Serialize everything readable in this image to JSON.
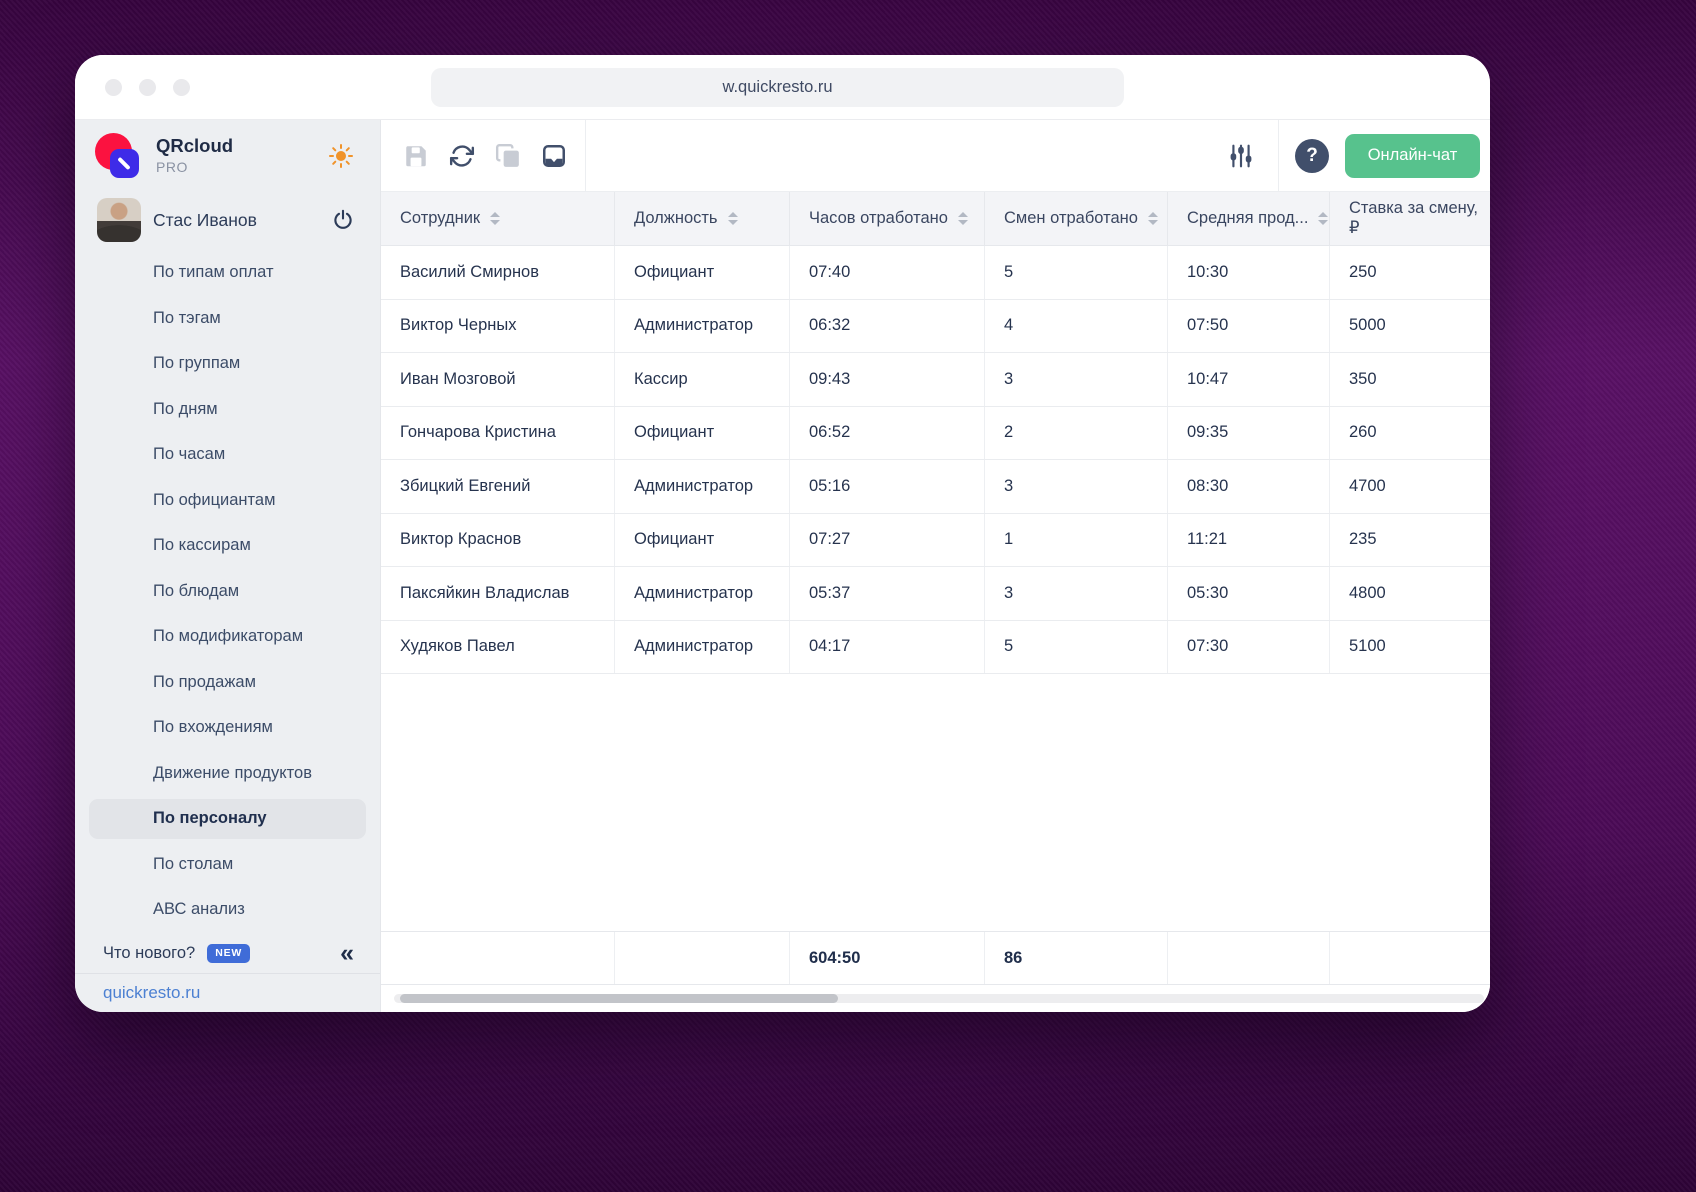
{
  "browser": {
    "url": "w.quickresto.ru"
  },
  "brand": {
    "name": "QRcloud",
    "plan": "PRO"
  },
  "colors": {
    "accent-green": "#57c28d",
    "badge-blue": "#3f6cd8",
    "link-blue": "#4c80d2",
    "logo-red": "#fb1240",
    "logo-blue": "#3e2be8",
    "sun-orange": "#f0932a",
    "icon-dark": "#414f6b",
    "icon-gray": "#c8ccd4"
  },
  "icons": {
    "help_glyph": "?",
    "collapse_glyph": "«",
    "toolbar_left": [
      "save-icon",
      "refresh-icon",
      "copy-icon",
      "export-tray-icon"
    ],
    "toolbar_right": [
      "sliders-icon",
      "help-icon"
    ],
    "sidebar": [
      "sun-icon",
      "power-icon",
      "collapse-chevrons-icon"
    ]
  },
  "toolbar": {
    "chat_button": "Онлайн-чат"
  },
  "sidebar": {
    "user": {
      "name": "Стас Иванов"
    },
    "items": [
      {
        "label": "По типам оплат",
        "active": false
      },
      {
        "label": "По тэгам",
        "active": false
      },
      {
        "label": "По группам",
        "active": false
      },
      {
        "label": "По дням",
        "active": false
      },
      {
        "label": "По часам",
        "active": false
      },
      {
        "label": "По официантам",
        "active": false
      },
      {
        "label": "По кассирам",
        "active": false
      },
      {
        "label": "По блюдам",
        "active": false
      },
      {
        "label": "По модификаторам",
        "active": false
      },
      {
        "label": "По продажам",
        "active": false
      },
      {
        "label": "По вхождениям",
        "active": false
      },
      {
        "label": "Движение продуктов",
        "active": false
      },
      {
        "label": "По персоналу",
        "active": true
      },
      {
        "label": "По столам",
        "active": false
      },
      {
        "label": "АВС анализ",
        "active": false
      }
    ],
    "footer": {
      "whats_new": "Что нового?",
      "badge": "NEW",
      "link": "quickresto.ru"
    }
  },
  "table": {
    "columns": [
      {
        "label": "Сотрудник",
        "sortable": true
      },
      {
        "label": "Должность",
        "sortable": true
      },
      {
        "label": "Часов отработано",
        "sortable": true
      },
      {
        "label": "Смен отработано",
        "sortable": true
      },
      {
        "label": "Средняя прод...",
        "sortable": true
      },
      {
        "label": "Ставка за смену, ₽",
        "sortable": false
      }
    ],
    "rows": [
      [
        "Василий Смирнов",
        "Официант",
        "07:40",
        "5",
        "10:30",
        "250"
      ],
      [
        "Виктор Черных",
        "Администратор",
        "06:32",
        "4",
        "07:50",
        "5000"
      ],
      [
        "Иван Мозговой",
        "Кассир",
        "09:43",
        "3",
        "10:47",
        "350"
      ],
      [
        "Гончарова Кристина",
        "Официант",
        "06:52",
        "2",
        "09:35",
        "260"
      ],
      [
        "Збицкий Евгений",
        "Администратор",
        "05:16",
        "3",
        "08:30",
        "4700"
      ],
      [
        "Виктор Краснов",
        "Официант",
        "07:27",
        "1",
        "11:21",
        "235"
      ],
      [
        "Паксяйкин Владислав",
        "Администратор",
        "05:37",
        "3",
        "05:30",
        "4800"
      ],
      [
        "Худяков Павел",
        "Администратор",
        "04:17",
        "5",
        "07:30",
        "5100"
      ]
    ],
    "totals": {
      "hours": "604:50",
      "shifts": "86"
    }
  }
}
